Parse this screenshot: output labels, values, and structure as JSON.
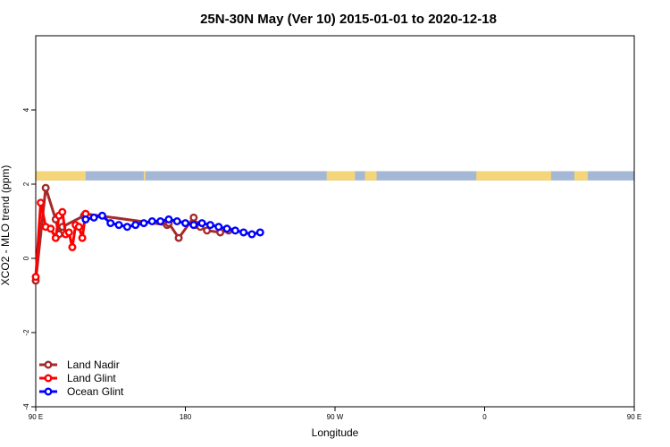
{
  "chart_data": {
    "type": "line",
    "title": "25N-30N May (Ver 10)   2015-01-01 to 2020-12-18",
    "xlabel": "Longitude",
    "ylabel": "XCO2 - MLO trend (ppm)",
    "xlim": [
      90,
      450
    ],
    "ylim": [
      -4,
      6
    ],
    "x_ticks": [
      {
        "value": 90,
        "label": "90 E"
      },
      {
        "value": 180,
        "label": "180"
      },
      {
        "value": 270,
        "label": "90 W"
      },
      {
        "value": 360,
        "label": "0"
      },
      {
        "value": 450,
        "label": "90 E"
      },
      {
        "value": 540,
        "label": "180"
      }
    ],
    "y_ticks": [
      {
        "value": -4,
        "label": "-4"
      },
      {
        "value": -2,
        "label": "-2"
      },
      {
        "value": 0,
        "label": "0"
      },
      {
        "value": 2,
        "label": "2"
      },
      {
        "value": 4,
        "label": "4"
      }
    ],
    "land_ocean_strip": {
      "ymin": 2.1,
      "ymax": 2.35,
      "ocean_color": "#a4b8d6",
      "land_color": "#f5d57a",
      "land_ranges": [
        [
          90,
          120
        ],
        [
          155,
          156
        ],
        [
          265,
          282
        ],
        [
          288,
          295
        ],
        [
          355,
          400
        ],
        [
          414,
          422
        ],
        [
          450,
          480
        ]
      ]
    },
    "legend_position": "bottom-left",
    "series": [
      {
        "name": "Land Nadir",
        "color": "#a52a2a",
        "x": [
          90,
          96,
          102,
          104,
          106,
          119,
          120,
          169,
          170,
          176,
          185,
          187,
          189,
          193,
          201,
          206
        ],
        "y": [
          -0.6,
          1.9,
          1.05,
          0.65,
          0.85,
          1.15,
          1.2,
          0.9,
          0.95,
          0.55,
          1.1,
          0.9,
          0.85,
          0.75,
          0.7,
          0.75
        ]
      },
      {
        "name": "Land Glint",
        "color": "#ff0000",
        "x": [
          90,
          93,
          96,
          99,
          102,
          104,
          106,
          108,
          110,
          112,
          114,
          116,
          118,
          120
        ],
        "y": [
          -0.5,
          1.5,
          0.85,
          0.8,
          0.55,
          1.15,
          1.25,
          0.65,
          0.7,
          0.3,
          0.9,
          0.85,
          0.55,
          1.2
        ]
      },
      {
        "name": "Ocean Glint",
        "color": "#0000ff",
        "x": [
          120,
          125,
          130,
          135,
          140,
          145,
          150,
          155,
          160,
          165,
          170,
          175,
          180,
          185,
          190,
          195,
          200,
          205,
          210,
          215,
          220,
          225
        ],
        "y": [
          1.05,
          1.1,
          1.15,
          0.95,
          0.9,
          0.85,
          0.9,
          0.95,
          1.0,
          1.0,
          1.05,
          1.0,
          0.95,
          0.9,
          0.95,
          0.9,
          0.85,
          0.8,
          0.75,
          0.7,
          0.65,
          0.7
        ]
      }
    ]
  }
}
